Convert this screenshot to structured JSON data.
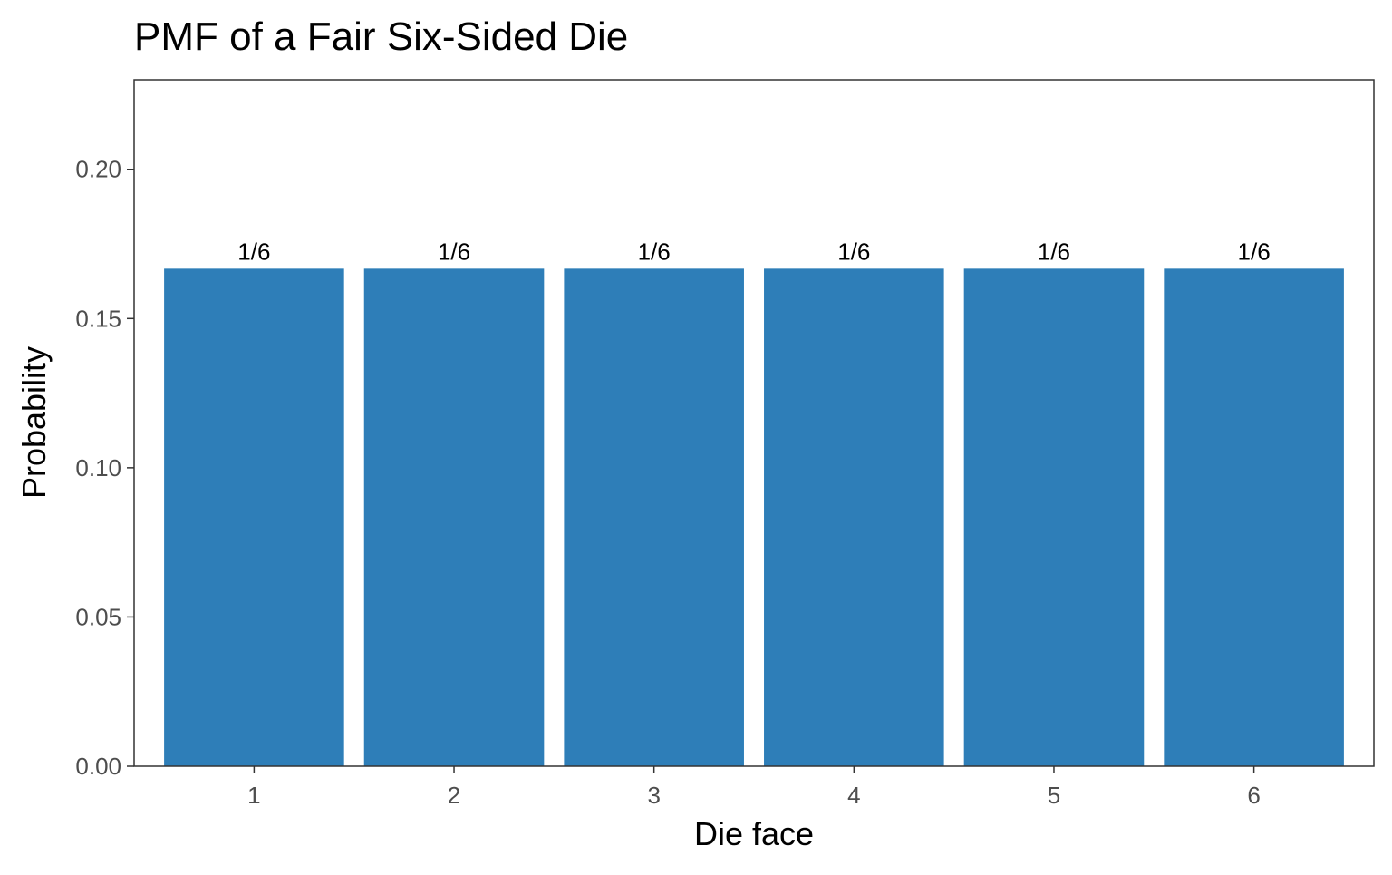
{
  "chart_data": {
    "type": "bar",
    "title": "PMF of a Fair Six-Sided Die",
    "xlabel": "Die face",
    "ylabel": "Probability",
    "categories": [
      "1",
      "2",
      "3",
      "4",
      "5",
      "6"
    ],
    "values": [
      0.1667,
      0.1667,
      0.1667,
      0.1667,
      0.1667,
      0.1667
    ],
    "data_labels": [
      "1/6",
      "1/6",
      "1/6",
      "1/6",
      "1/6",
      "1/6"
    ],
    "ylim": [
      0,
      0.23
    ],
    "yticks": [
      0,
      0.05,
      0.1,
      0.15,
      0.2
    ],
    "ytick_labels": [
      "0.00",
      "0.05",
      "0.10",
      "0.15",
      "0.20"
    ],
    "grid": false,
    "legend": "none",
    "colors": {
      "bar": "#2e7eb8",
      "panel_border": "#333333",
      "tick_text": "#4d4d4d",
      "text": "#000000",
      "background": "#ffffff"
    }
  }
}
